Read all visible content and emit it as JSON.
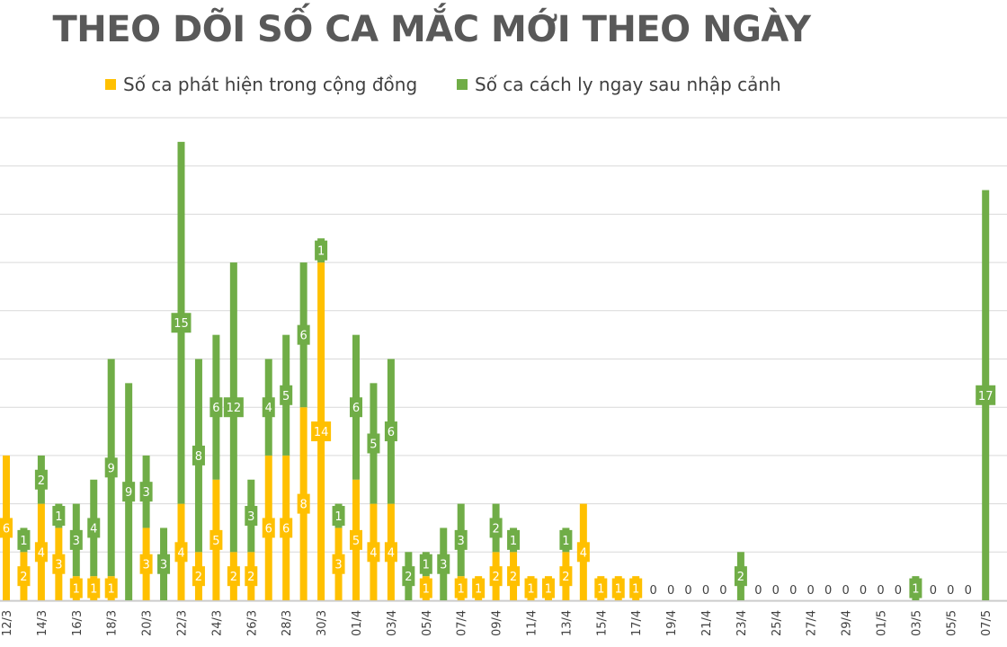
{
  "chart_data": {
    "type": "bar",
    "stacked": true,
    "title": "THEO DÕI SỐ CA MẮC MỚI THEO NGÀY",
    "legend_position": "top",
    "grid": true,
    "ylim": [
      0,
      20
    ],
    "categories": [
      "12/3",
      "13/3",
      "14/3",
      "15/3",
      "16/3",
      "17/3",
      "18/3",
      "19/3",
      "20/3",
      "21/3",
      "22/3",
      "23/3",
      "24/3",
      "25/3",
      "26/3",
      "27/3",
      "28/3",
      "29/3",
      "30/3",
      "31/3",
      "01/4",
      "02/4",
      "03/4",
      "04/4",
      "05/4",
      "06/4",
      "07/4",
      "08/4",
      "09/4",
      "10/4",
      "11/4",
      "12/4",
      "13/4",
      "14/4",
      "15/4",
      "16/4",
      "17/4",
      "18/4",
      "19/4",
      "20/4",
      "21/4",
      "22/4",
      "23/4",
      "24/4",
      "25/4",
      "26/4",
      "27/4",
      "28/4",
      "29/4",
      "30/4",
      "01/5",
      "02/5",
      "03/5",
      "04/5",
      "05/5",
      "06/5",
      "07/5"
    ],
    "xtick_labels": [
      "12/3",
      "14/3",
      "16/3",
      "18/3",
      "20/3",
      "22/3",
      "24/3",
      "26/3",
      "28/3",
      "30/3",
      "01/4",
      "03/4",
      "05/4",
      "07/4",
      "09/4",
      "11/4",
      "13/4",
      "15/4",
      "17/4",
      "19/4",
      "21/4",
      "23/4",
      "25/4",
      "27/4",
      "29/4",
      "01/5",
      "03/5",
      "05/5",
      "07/5"
    ],
    "series": [
      {
        "name": "Số ca phát hiện trong cộng đồng",
        "color": "#FFC000",
        "values": [
          6,
          2,
          4,
          3,
          1,
          1,
          1,
          0,
          3,
          0,
          4,
          2,
          5,
          2,
          2,
          6,
          6,
          8,
          14,
          3,
          5,
          4,
          4,
          0,
          1,
          0,
          1,
          1,
          2,
          2,
          1,
          1,
          2,
          4,
          1,
          1,
          1,
          0,
          0,
          0,
          0,
          0,
          0,
          0,
          0,
          0,
          0,
          0,
          0,
          0,
          0,
          0,
          0,
          0,
          0,
          0,
          0
        ]
      },
      {
        "name": "Số ca cách ly ngay sau nhập cảnh",
        "color": "#70AD47",
        "values": [
          0,
          1,
          2,
          1,
          3,
          4,
          9,
          9,
          3,
          3,
          15,
          8,
          6,
          12,
          3,
          4,
          5,
          6,
          1,
          1,
          6,
          5,
          6,
          2,
          1,
          3,
          3,
          0,
          2,
          1,
          0,
          0,
          1,
          0,
          0,
          0,
          0,
          0,
          0,
          0,
          0,
          0,
          2,
          0,
          0,
          0,
          0,
          0,
          0,
          0,
          0,
          0,
          1,
          0,
          0,
          0,
          17
        ]
      }
    ]
  }
}
